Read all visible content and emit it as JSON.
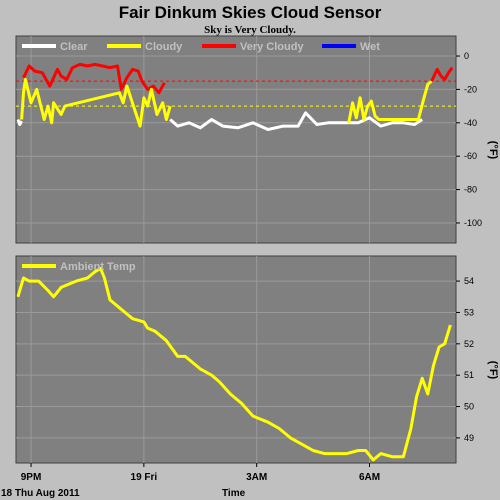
{
  "header": {
    "title": "Fair Dinkum Skies Cloud Sensor",
    "subtitle": "Sky is Very Cloudy."
  },
  "colors": {
    "background": "#c0c0c0",
    "plot_area": "#808080",
    "clear": "#ffffff",
    "cloudy": "#ffff00",
    "very_cloudy": "#ff0000",
    "wet": "#0000ff",
    "ambient": "#ffff00"
  },
  "footer": {
    "date_label": "18 Thu Aug 2011",
    "time_label": "Time"
  },
  "chart_data": [
    {
      "type": "line",
      "ylabel": "(°F)",
      "ylim": [
        -112,
        12
      ],
      "ytick_labels": [
        "0",
        "-20",
        "-40",
        "-60",
        "-80",
        "-100"
      ],
      "yticks": [
        0,
        -20,
        -40,
        -60,
        -80,
        -100
      ],
      "x_tick_labels": [
        "9PM",
        "19 Fri",
        "3AM",
        "6AM"
      ],
      "x_ticks": [
        21,
        24,
        27,
        30
      ],
      "xlim": [
        20.6,
        32.3
      ],
      "grid": true,
      "legend_position": "top",
      "legend": [
        "Clear",
        "Cloudy",
        "Very Cloudy",
        "Wet"
      ],
      "thresholds": [
        {
          "name": "very-cloudy-threshold",
          "value": -15,
          "color": "#ff0000"
        },
        {
          "name": "cloudy-threshold",
          "value": -30,
          "color": "#ffff00"
        }
      ],
      "series": [
        {
          "name": "Clear",
          "color": "#ffffff",
          "x": [
            20.65,
            20.7,
            20.75
          ],
          "y": [
            -38,
            -41,
            -39
          ]
        },
        {
          "name": "Very Cloudy",
          "color": "#ff0000",
          "x": [
            20.8,
            20.95,
            21.1,
            21.3,
            21.5,
            21.7,
            21.8,
            21.95,
            22.1,
            22.3,
            22.5,
            22.7,
            22.9,
            23.1,
            23.3,
            23.4,
            23.55,
            23.7,
            23.85,
            23.95,
            24.1,
            24.25,
            24.4,
            24.55
          ],
          "y": [
            -13,
            -6,
            -9,
            -10,
            -18,
            -8,
            -12,
            -14,
            -7,
            -5,
            -6,
            -5,
            -6,
            -7,
            -6,
            -20,
            -13,
            -8,
            -9,
            -15,
            -20,
            -18,
            -22,
            -16
          ]
        },
        {
          "name": "Cloudy",
          "color": "#ffff00",
          "x": [
            20.75,
            20.8,
            20.85,
            21.0,
            21.15,
            21.35,
            21.45,
            21.55,
            21.6,
            21.8,
            21.9,
            23.35,
            23.45,
            23.55,
            23.9,
            24.0,
            24.1,
            24.2,
            24.35,
            24.5,
            24.6,
            24.7
          ],
          "y": [
            -38,
            -22,
            -14,
            -28,
            -20,
            -38,
            -30,
            -40,
            -28,
            -35,
            -30,
            -22,
            -28,
            -18,
            -42,
            -25,
            -30,
            -20,
            -35,
            -28,
            -38,
            -30
          ]
        },
        {
          "name": "Clear",
          "color": "#ffffff",
          "x": [
            24.7,
            24.9,
            25.2,
            25.5,
            25.8,
            26.1,
            26.5,
            26.9,
            27.3,
            27.7,
            28.1,
            28.3,
            28.6,
            28.9,
            29.3,
            29.7,
            30.0,
            30.3,
            30.6,
            30.9,
            31.2,
            31.4
          ],
          "y": [
            -38,
            -42,
            -40,
            -43,
            -38,
            -42,
            -43,
            -40,
            -44,
            -42,
            -42,
            -34,
            -41,
            -40,
            -40,
            -40,
            -37,
            -42,
            -40,
            -40,
            -41,
            -38
          ]
        },
        {
          "name": "Cloudy",
          "color": "#ffff00",
          "x": [
            29.45,
            29.55,
            29.65,
            29.75,
            29.85,
            29.95,
            30.05,
            30.15,
            30.25,
            31.3,
            31.45,
            31.55,
            31.65
          ],
          "y": [
            -40,
            -28,
            -37,
            -25,
            -38,
            -30,
            -27,
            -36,
            -38,
            -38,
            -25,
            -17,
            -15
          ]
        },
        {
          "name": "Very Cloudy",
          "color": "#ff0000",
          "x": [
            31.65,
            31.8,
            31.9,
            32.0,
            32.1,
            32.2
          ],
          "y": [
            -15,
            -8,
            -12,
            -14,
            -10,
            -7
          ]
        }
      ]
    },
    {
      "type": "line",
      "ylabel": "(°F)",
      "ylim": [
        48.2,
        54.8
      ],
      "ytick_labels": [
        "54",
        "53",
        "52",
        "51",
        "50",
        "49"
      ],
      "yticks": [
        54,
        53,
        52,
        51,
        50,
        49
      ],
      "x_tick_labels": [
        "9PM",
        "19 Fri",
        "3AM",
        "6AM"
      ],
      "x_ticks": [
        21,
        24,
        27,
        30
      ],
      "xlim": [
        20.6,
        32.3
      ],
      "grid": true,
      "legend_position": "top",
      "legend": [
        "Ambient Temp"
      ],
      "series": [
        {
          "name": "Ambient Temp",
          "color": "#ffff00",
          "x": [
            20.65,
            20.8,
            20.95,
            21.2,
            21.45,
            21.6,
            21.8,
            22.0,
            22.2,
            22.5,
            22.7,
            22.85,
            22.95,
            23.1,
            23.3,
            23.5,
            23.7,
            24.0,
            24.1,
            24.3,
            24.6,
            24.9,
            25.1,
            25.5,
            25.8,
            26.0,
            26.3,
            26.6,
            26.9,
            27.1,
            27.3,
            27.6,
            27.9,
            28.2,
            28.5,
            28.8,
            29.1,
            29.4,
            29.7,
            29.9,
            30.1,
            30.3,
            30.6,
            30.9,
            31.1,
            31.25,
            31.4,
            31.55,
            31.7,
            31.85,
            32.0,
            32.15
          ],
          "y": [
            53.5,
            54.1,
            54.0,
            54.0,
            53.7,
            53.5,
            53.8,
            53.9,
            54.0,
            54.1,
            54.3,
            54.4,
            54.1,
            53.4,
            53.2,
            53.0,
            52.8,
            52.7,
            52.5,
            52.4,
            52.1,
            51.6,
            51.6,
            51.2,
            51.0,
            50.8,
            50.4,
            50.1,
            49.7,
            49.6,
            49.5,
            49.3,
            49.0,
            48.8,
            48.6,
            48.5,
            48.5,
            48.5,
            48.6,
            48.6,
            48.3,
            48.5,
            48.4,
            48.4,
            49.3,
            50.3,
            50.9,
            50.4,
            51.3,
            51.9,
            52.0,
            52.6
          ]
        }
      ]
    }
  ]
}
